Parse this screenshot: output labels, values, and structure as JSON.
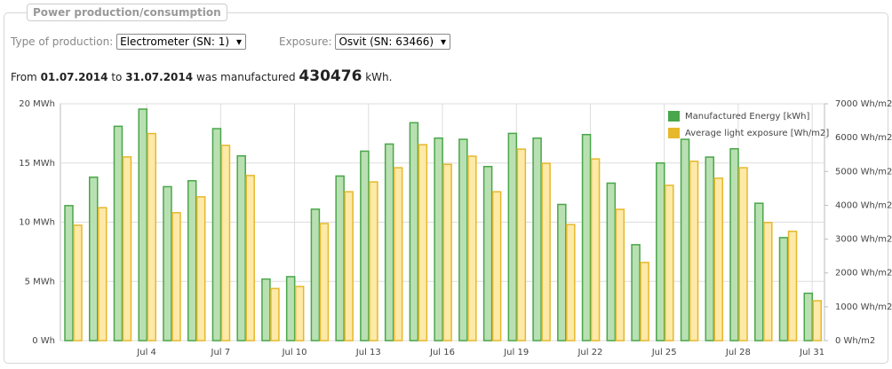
{
  "panel": {
    "title": "Power production/consumption"
  },
  "filters": {
    "production_label": "Type of production:",
    "production_value": "Electrometer (SN: 1)",
    "exposure_label": "Exposure:",
    "exposure_value": "Osvit (SN: 63466)"
  },
  "summary": {
    "prefix": "From",
    "start": "01.07.2014",
    "between": "to",
    "end": "31.07.2014",
    "middle": "was manufactured",
    "total": 430476,
    "unit": "kWh."
  },
  "chart_data": {
    "type": "bar",
    "categories": [
      null,
      null,
      null,
      "Jul 4",
      null,
      null,
      "Jul 7",
      null,
      null,
      "Jul 10",
      null,
      null,
      "Jul 13",
      null,
      null,
      "Jul 16",
      null,
      null,
      "Jul 19",
      null,
      null,
      "Jul 22",
      null,
      null,
      "Jul 25",
      null,
      null,
      "Jul 28",
      null,
      null,
      "Jul 31"
    ],
    "series": [
      {
        "name": "Manufactured Energy [kWh]",
        "color": "#4aa64a",
        "fill": "#b9e0b2",
        "values": [
          11.4,
          13.8,
          18.1,
          19.55,
          13.0,
          13.5,
          17.9,
          15.6,
          5.2,
          5.4,
          11.1,
          13.9,
          16.0,
          16.6,
          18.4,
          17.1,
          17.0,
          14.7,
          17.5,
          17.1,
          11.5,
          17.4,
          13.3,
          8.1,
          15.0,
          17.0,
          15.5,
          16.2,
          11.6,
          8.7,
          4.0
        ]
      },
      {
        "name": "Average light exposure [Wh/m2]",
        "color": "#e6b82c",
        "fill": "#fde9a8",
        "axis": "y2",
        "values": [
          3410,
          3930,
          5430,
          6120,
          3780,
          4250,
          5770,
          4880,
          1540,
          1600,
          3460,
          4400,
          4690,
          5110,
          5790,
          5210,
          5450,
          4400,
          5660,
          5240,
          3430,
          5370,
          3880,
          2310,
          4590,
          5300,
          4800,
          5110,
          3490,
          3230,
          1180
        ]
      }
    ],
    "ylim": [
      0,
      20
    ],
    "yticks": [
      {
        "value": 0,
        "label": "0 Wh"
      },
      {
        "value": 5,
        "label": "5 MWh"
      },
      {
        "value": 10,
        "label": "10 MWh"
      },
      {
        "value": 15,
        "label": "15 MWh"
      },
      {
        "value": 20,
        "label": "20 MWh"
      }
    ],
    "y2lim": [
      0,
      7000
    ],
    "y2ticks": [
      {
        "value": 0,
        "label": "0 Wh/m2"
      },
      {
        "value": 1000,
        "label": "1000 Wh/m2"
      },
      {
        "value": 2000,
        "label": "2000 Wh/m2"
      },
      {
        "value": 3000,
        "label": "3000 Wh/m2"
      },
      {
        "value": 4000,
        "label": "4000 Wh/m2"
      },
      {
        "value": 5000,
        "label": "5000 Wh/m2"
      },
      {
        "value": 6000,
        "label": "6000 Wh/m2"
      },
      {
        "value": 7000,
        "label": "7000 Wh/m2"
      }
    ],
    "grid": true,
    "legend": "top-right"
  }
}
